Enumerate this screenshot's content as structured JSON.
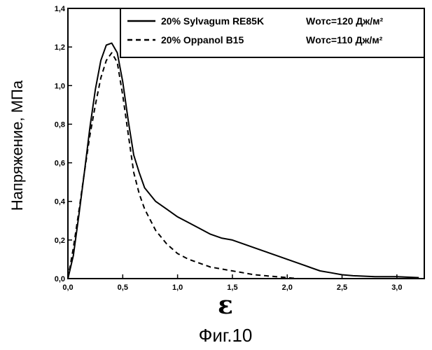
{
  "chart_data": {
    "type": "line",
    "xlabel": "ε",
    "ylabel": "Напряжение, МПа",
    "caption": "Фиг.10",
    "xlim": [
      0,
      3.25
    ],
    "ylim": [
      0,
      1.4
    ],
    "xticks": [
      0,
      0.5,
      1.0,
      1.5,
      2.0,
      2.5,
      3.0
    ],
    "xtick_labels": [
      "0,0",
      "0,5",
      "1,0",
      "1,5",
      "2,0",
      "2,5",
      "3,0"
    ],
    "yticks": [
      0,
      0.2,
      0.4,
      0.6,
      0.8,
      1.0,
      1.2,
      1.4
    ],
    "ytick_labels": [
      "0,0",
      "0,2",
      "0,4",
      "0,6",
      "0,8",
      "1,0",
      "1,2",
      "1,4"
    ],
    "grid": false,
    "legend_position": "top-right",
    "series": [
      {
        "name": "20% Sylvagum RE85K",
        "annotation": "Wотс=120 Дж/м²",
        "style": "solid",
        "x": [
          0,
          0.05,
          0.1,
          0.15,
          0.2,
          0.25,
          0.3,
          0.35,
          0.4,
          0.45,
          0.5,
          0.55,
          0.6,
          0.65,
          0.7,
          0.8,
          0.9,
          1.0,
          1.1,
          1.2,
          1.3,
          1.4,
          1.5,
          1.6,
          1.7,
          1.8,
          1.9,
          2.0,
          2.1,
          2.2,
          2.3,
          2.4,
          2.5,
          2.6,
          2.8,
          3.0,
          3.2
        ],
        "y": [
          0,
          0.12,
          0.33,
          0.55,
          0.78,
          0.98,
          1.13,
          1.21,
          1.22,
          1.17,
          1.02,
          0.82,
          0.64,
          0.55,
          0.47,
          0.4,
          0.36,
          0.32,
          0.29,
          0.26,
          0.23,
          0.21,
          0.2,
          0.18,
          0.16,
          0.14,
          0.12,
          0.1,
          0.08,
          0.06,
          0.04,
          0.03,
          0.02,
          0.015,
          0.01,
          0.01,
          0.005
        ]
      },
      {
        "name": "20% Oppanol B15",
        "annotation": "Wотс=110 Дж/м²",
        "style": "dashed",
        "x": [
          0,
          0.05,
          0.1,
          0.15,
          0.2,
          0.25,
          0.3,
          0.35,
          0.4,
          0.45,
          0.5,
          0.55,
          0.6,
          0.65,
          0.7,
          0.8,
          0.9,
          1.0,
          1.1,
          1.2,
          1.3,
          1.4,
          1.5,
          1.6,
          1.7,
          1.8,
          1.9,
          2.0,
          2.1
        ],
        "y": [
          0,
          0.16,
          0.35,
          0.55,
          0.74,
          0.9,
          1.04,
          1.13,
          1.17,
          1.12,
          0.95,
          0.75,
          0.55,
          0.44,
          0.36,
          0.25,
          0.18,
          0.13,
          0.1,
          0.08,
          0.06,
          0.05,
          0.04,
          0.03,
          0.02,
          0.015,
          0.01,
          0.005,
          0
        ]
      }
    ]
  }
}
